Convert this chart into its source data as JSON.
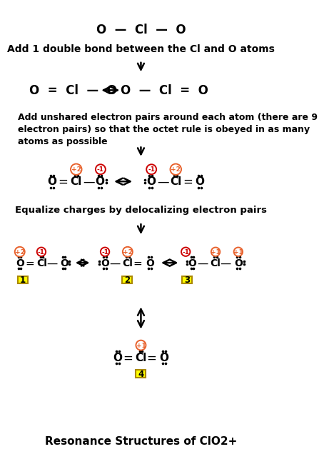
{
  "bg_color": "#ffffff",
  "title_bottom": "Resonance Structures of ClO2+",
  "step1_label": "Add 1 double bond between the Cl and O atoms",
  "step3_label": "Add unshared electron pairs around each atom (there are 9\nelectron pairs) so that the octet rule is obeyed in as many\natoms as possible",
  "step4_label": "Equalize charges by delocalizing electron pairs",
  "charge_color_orange": "#e8612c",
  "charge_color_red": "#cc0000",
  "yellow_color": "#ffff00",
  "yellow_border": "#aa8800"
}
